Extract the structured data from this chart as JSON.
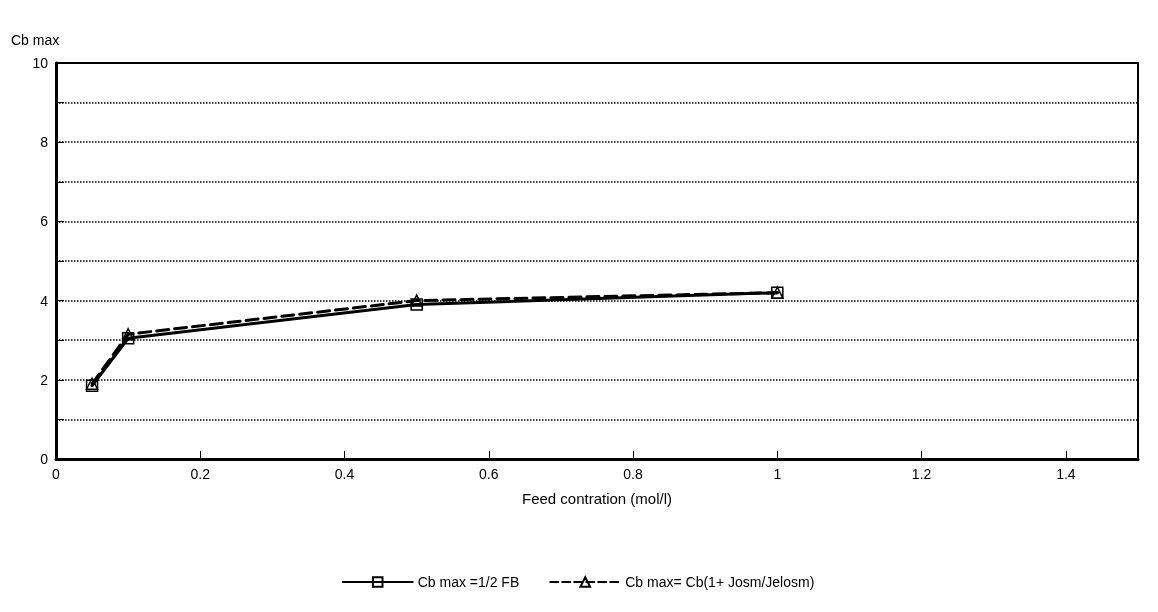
{
  "chart_data": {
    "type": "line",
    "xlabel": "Feed contration (mol/l)",
    "ylabel": "Cb max",
    "xlim": [
      0,
      1.5
    ],
    "xticks": [
      0,
      0.2,
      0.4,
      0.6,
      0.8,
      1,
      1.2,
      1.4
    ],
    "ylim": [
      0,
      10
    ],
    "yticks": [
      0,
      2,
      4,
      6,
      8,
      10
    ],
    "grid": "y",
    "legend": "bottom",
    "series": [
      {
        "name": "Cb max =1/2 FB",
        "color": "#000000",
        "x": [
          0.05,
          0.1,
          0.5,
          1
        ],
        "values": [
          1.85,
          3.05,
          3.9,
          4.2
        ],
        "marker": "square",
        "line_style": "solid"
      },
      {
        "name": "Cb max= Cb(1+ Josm/Jelosm)",
        "color": "#000000",
        "x": [
          0.05,
          0.1,
          0.5,
          1
        ],
        "values": [
          1.9,
          3.15,
          4.0,
          4.2
        ],
        "marker": "triangle",
        "line_style": "dashed"
      }
    ]
  }
}
